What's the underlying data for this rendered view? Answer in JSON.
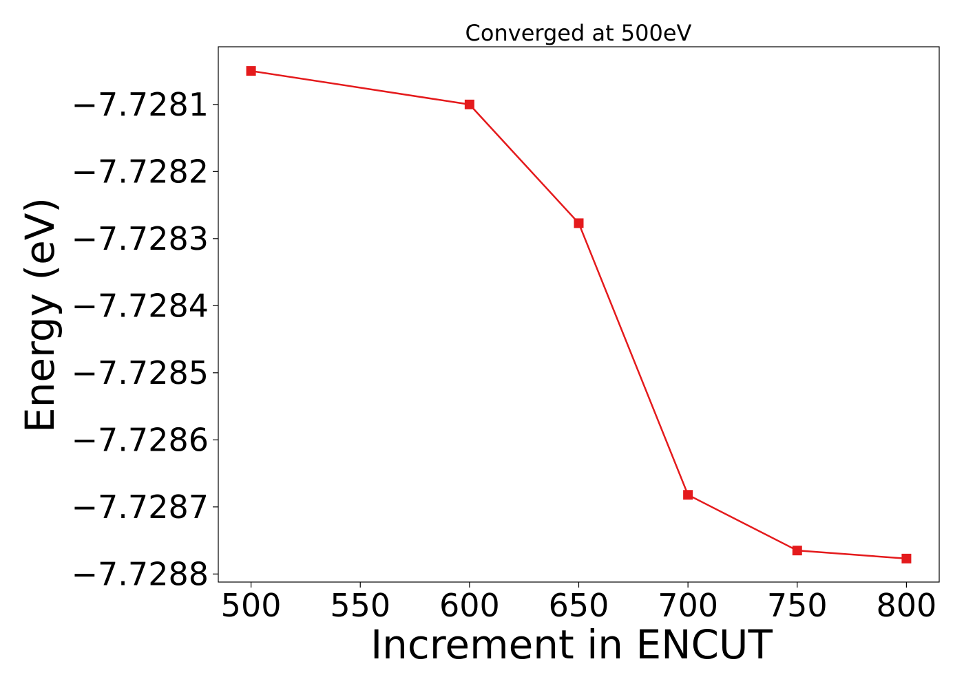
{
  "chart_data": {
    "type": "line",
    "title": "Converged at 500eV",
    "xlabel": "Increment in ENCUT",
    "ylabel": "Energy (eV)",
    "x": [
      500,
      600,
      650,
      700,
      750,
      800
    ],
    "series": [
      {
        "values": [
          -7.72805,
          -7.7281,
          -7.728277,
          -7.728682,
          -7.728765,
          -7.728777
        ],
        "color": "#e41a1c",
        "marker": "square"
      }
    ],
    "xticks": [
      500,
      550,
      600,
      650,
      700,
      750,
      800
    ],
    "xtick_labels": [
      "500",
      "550",
      "600",
      "650",
      "700",
      "750",
      "800"
    ],
    "yticks": [
      -7.7281,
      -7.7282,
      -7.7283,
      -7.7284,
      -7.7285,
      -7.7286,
      -7.7287,
      -7.7288
    ],
    "ytick_labels": [
      "−7.7281",
      "−7.7282",
      "−7.7283",
      "−7.7284",
      "−7.7285",
      "−7.7286",
      "−7.7287",
      "−7.7288"
    ],
    "xlim": [
      485,
      815
    ],
    "ylim": [
      -7.728812,
      -7.728014
    ],
    "grid": false,
    "legend": false
  }
}
